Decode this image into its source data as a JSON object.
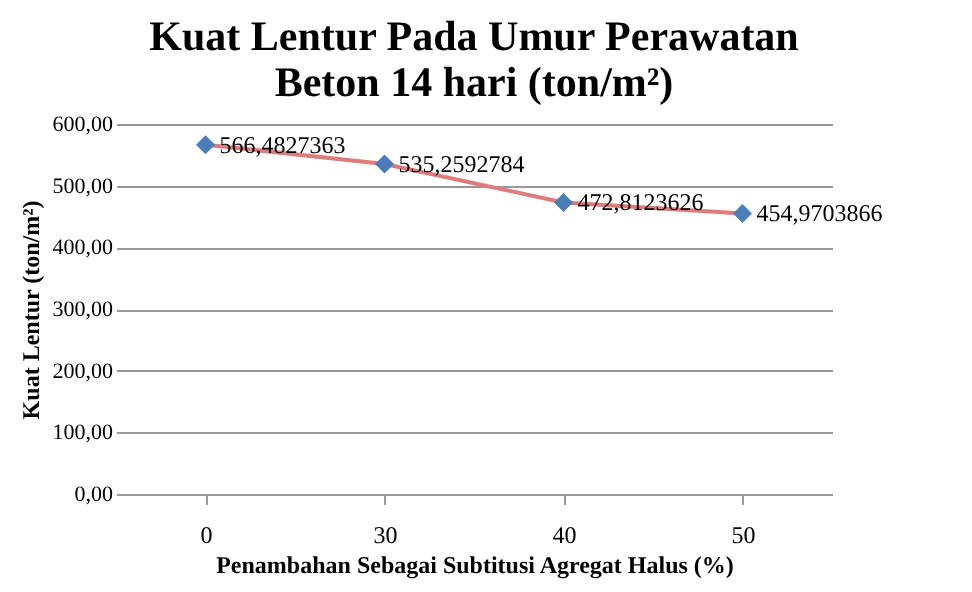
{
  "chart_data": {
    "type": "line",
    "title": [
      "Kuat Lentur Pada Umur Perawatan",
      "Beton 14 hari (ton/m²)"
    ],
    "xlabel": "Penambahan Sebagai Subtitusi Agregat Halus (%)",
    "ylabel": "Kuat Lentur (ton/m²)",
    "categories": [
      "0",
      "30",
      "40",
      "50"
    ],
    "series": [
      {
        "color": "#e07b7b",
        "marker": "none",
        "values": [
          566.4827363,
          535.2592784,
          472.8123626,
          454.9703866
        ]
      },
      {
        "type": "scatter",
        "color": "#4a7ebb",
        "marker": "diamond",
        "values": [
          566.4827363,
          535.2592784,
          472.8123626,
          454.9703866
        ],
        "value_labels": [
          "566,4827363",
          "535,2592784",
          "472,8123626",
          "454,9703866"
        ]
      }
    ],
    "ylim": [
      0,
      600
    ],
    "yticks": [
      {
        "value": 0,
        "label": "0,00"
      },
      {
        "value": 100,
        "label": "100,00"
      },
      {
        "value": 200,
        "label": "200,00"
      },
      {
        "value": 300,
        "label": "300,00"
      },
      {
        "value": 400,
        "label": "400,00"
      },
      {
        "value": 500,
        "label": "500,00"
      },
      {
        "value": 600,
        "label": "600,00"
      }
    ],
    "grid": "y"
  }
}
